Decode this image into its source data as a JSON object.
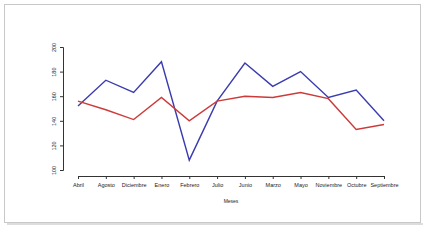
{
  "chart_data": {
    "type": "line",
    "x_label": "Meses",
    "categories": [
      "Abril",
      "Agosto",
      "Diciembre",
      "Enero",
      "Febrero",
      "Julio",
      "Junio",
      "Marzo",
      "Mayo",
      "Noviembre",
      "Octubre",
      "Septiembre"
    ],
    "series": [
      {
        "color": "#3b3bb0",
        "values": [
          152,
          173,
          163,
          188,
          108,
          156,
          187,
          168,
          180,
          159,
          165,
          140
        ]
      },
      {
        "color": "#cc3a3a",
        "values": [
          156,
          149,
          141,
          159,
          140,
          156,
          160,
          159,
          163,
          158,
          133,
          137
        ]
      }
    ],
    "ylim": [
      100,
      200
    ],
    "yticks": [
      100,
      120,
      140,
      160,
      180,
      200
    ]
  }
}
